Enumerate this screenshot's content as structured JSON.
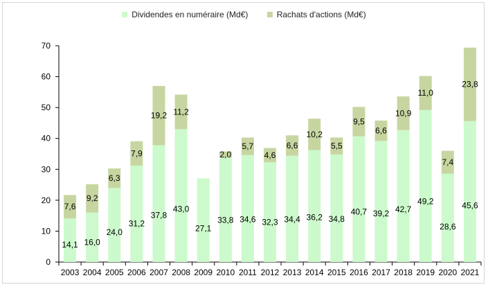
{
  "colors": {
    "dividends": "#ccfacc",
    "buybacks": "#c7d6a1",
    "axis": "#000000"
  },
  "chart_data": {
    "type": "bar",
    "stacked": true,
    "title": "",
    "xlabel": "",
    "ylabel": "",
    "ylim": [
      0,
      70
    ],
    "yticks": [
      0,
      10,
      20,
      30,
      40,
      50,
      60,
      70
    ],
    "grid": false,
    "legend_position": "top-center",
    "categories": [
      "2003",
      "2004",
      "2005",
      "2006",
      "2007",
      "2008",
      "2009",
      "2010",
      "2011",
      "2012",
      "2013",
      "2014",
      "2015",
      "2016",
      "2017",
      "2018",
      "2019",
      "2020",
      "2021"
    ],
    "series": [
      {
        "name": "Dividendes en numéraire (Md€)",
        "values": [
          14.1,
          16.0,
          24.0,
          31.2,
          37.8,
          43.0,
          27.1,
          33.8,
          34.6,
          32.3,
          34.4,
          36.2,
          34.8,
          40.7,
          39.2,
          42.7,
          49.2,
          28.6,
          45.6
        ],
        "labels": [
          "14,1",
          "16,0",
          "24,0",
          "31,2",
          "37,8",
          "43,0",
          "27,1",
          "33,8",
          "34,6",
          "32,3",
          "34,4",
          "36,2",
          "34,8",
          "40,7",
          "39,2",
          "42,7",
          "49,2",
          "28,6",
          "45,6"
        ]
      },
      {
        "name": "Rachats d'actions (Md€)",
        "values": [
          7.6,
          9.2,
          6.3,
          7.9,
          19.2,
          11.2,
          null,
          2.0,
          5.7,
          4.6,
          6.6,
          10.2,
          5.5,
          9.5,
          6.6,
          10.9,
          11.0,
          7.4,
          23.8
        ],
        "labels": [
          "7,6",
          "9,2",
          "6,3",
          "7,9",
          "19,2",
          "11,2",
          "",
          "2,0",
          "5,7",
          "4,6",
          "6,6",
          "10,2",
          "5,5",
          "9,5",
          "6,6",
          "10,9",
          "11,0",
          "7,4",
          "23,8"
        ]
      }
    ]
  }
}
